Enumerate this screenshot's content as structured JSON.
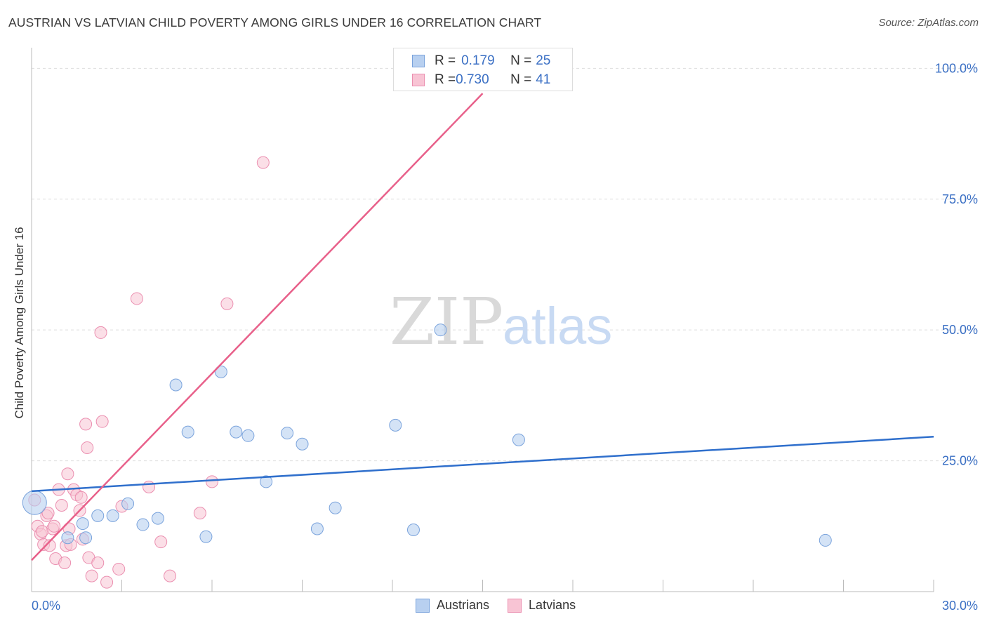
{
  "title": "AUSTRIAN VS LATVIAN CHILD POVERTY AMONG GIRLS UNDER 16 CORRELATION CHART",
  "source": "Source: ZipAtlas.com",
  "watermark": {
    "zip": "ZIP",
    "atlas": "atlas"
  },
  "legend": {
    "rows": [
      {
        "r_label": "R = ",
        "r_value": "0.179",
        "n_label": "N = ",
        "n_value": "25"
      },
      {
        "r_label": "R = ",
        "r_value": "0.730",
        "n_label": "N = ",
        "n_value": "41"
      }
    ]
  },
  "bottom_legend": {
    "austrians": "Austrians",
    "latvians": "Latvians"
  },
  "colors": {
    "austrians_fill": "#b8d0f0",
    "austrians_stroke": "#7aa3dc",
    "austrians_line": "#2f6fcc",
    "latvians_fill": "#f8c4d4",
    "latvians_stroke": "#eb8fb0",
    "latvians_line": "#e8608a",
    "tick_label": "#3a6fc4",
    "grid": "#dddddd"
  },
  "chart_data": {
    "type": "scatter",
    "title": "AUSTRIAN VS LATVIAN CHILD POVERTY AMONG GIRLS UNDER 16 CORRELATION CHART",
    "xlabel": "",
    "ylabel": "Child Poverty Among Girls Under 16",
    "xlim": [
      0,
      30
    ],
    "ylim": [
      0,
      103
    ],
    "x_tick_labels": [
      {
        "value": 0,
        "label": "0.0%"
      },
      {
        "value": 30,
        "label": "30.0%"
      }
    ],
    "y_tick_labels": [
      {
        "value": 25,
        "label": "25.0%"
      },
      {
        "value": 50,
        "label": "50.0%"
      },
      {
        "value": 75,
        "label": "75.0%"
      },
      {
        "value": 100,
        "label": "100.0%"
      }
    ],
    "grid": true,
    "legend_position": "top-center",
    "series": [
      {
        "name": "Austrians",
        "points": [
          [
            0.1,
            17.0
          ],
          [
            1.2,
            10.3
          ],
          [
            1.8,
            10.3
          ],
          [
            1.7,
            13.0
          ],
          [
            2.2,
            14.5
          ],
          [
            2.7,
            14.5
          ],
          [
            3.2,
            16.8
          ],
          [
            3.7,
            12.8
          ],
          [
            4.2,
            14.0
          ],
          [
            4.8,
            39.5
          ],
          [
            5.2,
            30.5
          ],
          [
            5.8,
            10.5
          ],
          [
            6.3,
            42.0
          ],
          [
            6.8,
            30.5
          ],
          [
            7.2,
            29.8
          ],
          [
            7.8,
            21.0
          ],
          [
            8.5,
            30.3
          ],
          [
            9.0,
            28.2
          ],
          [
            9.5,
            12.0
          ],
          [
            10.1,
            16.0
          ],
          [
            12.1,
            31.8
          ],
          [
            12.7,
            11.8
          ],
          [
            13.6,
            50.0
          ],
          [
            16.2,
            29.0
          ],
          [
            26.4,
            9.8
          ]
        ],
        "big_point": [
          0.1,
          17.0
        ],
        "trend": {
          "x": [
            0,
            30
          ],
          "y": [
            19.2,
            29.6
          ]
        }
      },
      {
        "name": "Latvians",
        "points": [
          [
            0.1,
            17.5
          ],
          [
            0.2,
            12.5
          ],
          [
            0.3,
            11.0
          ],
          [
            0.4,
            9.0
          ],
          [
            0.5,
            14.5
          ],
          [
            0.6,
            8.8
          ],
          [
            0.7,
            12.0
          ],
          [
            0.8,
            6.3
          ],
          [
            0.9,
            19.5
          ],
          [
            1.0,
            16.5
          ],
          [
            1.1,
            5.5
          ],
          [
            1.15,
            8.8
          ],
          [
            1.2,
            22.5
          ],
          [
            1.3,
            9.0
          ],
          [
            1.4,
            19.5
          ],
          [
            1.5,
            18.5
          ],
          [
            1.6,
            15.5
          ],
          [
            1.65,
            18.0
          ],
          [
            1.7,
            10.0
          ],
          [
            1.8,
            32.0
          ],
          [
            1.85,
            27.5
          ],
          [
            1.9,
            6.5
          ],
          [
            2.0,
            3.0
          ],
          [
            2.2,
            5.5
          ],
          [
            2.3,
            49.5
          ],
          [
            2.35,
            32.5
          ],
          [
            2.5,
            1.8
          ],
          [
            2.9,
            4.3
          ],
          [
            3.0,
            16.3
          ],
          [
            3.5,
            56.0
          ],
          [
            3.9,
            20.0
          ],
          [
            4.3,
            9.5
          ],
          [
            4.6,
            3.0
          ],
          [
            5.6,
            15.0
          ],
          [
            6.0,
            21.0
          ],
          [
            6.5,
            55.0
          ],
          [
            7.7,
            82.0
          ],
          [
            0.35,
            11.5
          ],
          [
            0.55,
            15.0
          ],
          [
            0.75,
            12.5
          ],
          [
            1.25,
            12.0
          ]
        ],
        "trend": {
          "x": [
            0,
            15
          ],
          "y": [
            6.0,
            95.2
          ]
        }
      }
    ]
  }
}
